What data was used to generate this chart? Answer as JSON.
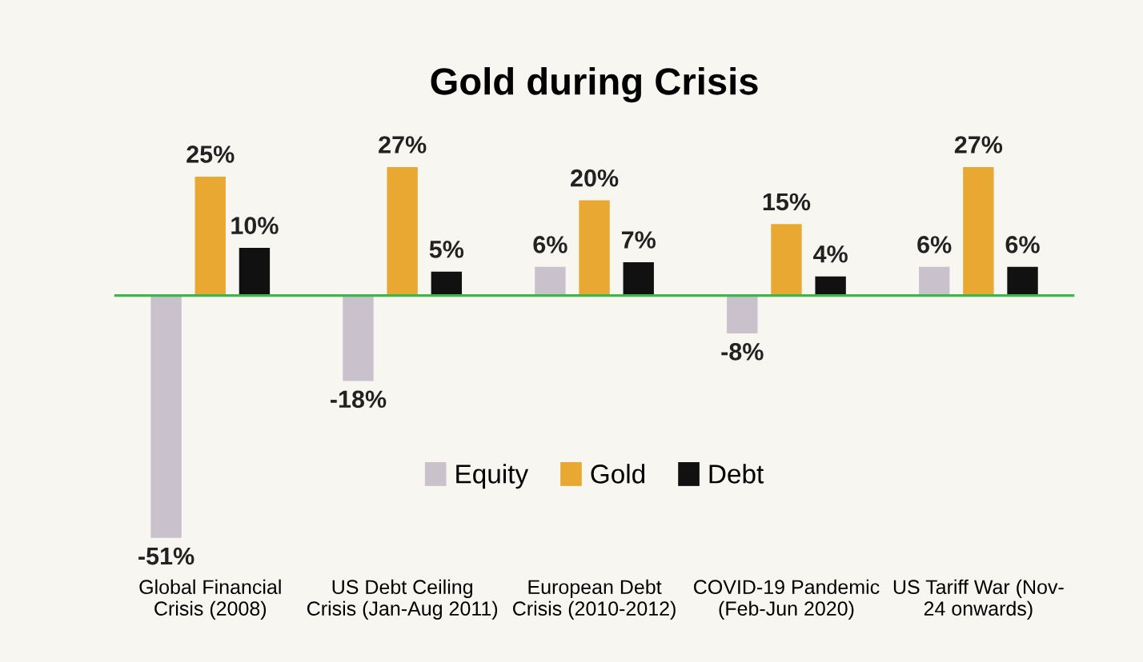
{
  "chart_data": {
    "type": "bar",
    "title": "Gold during Crisis",
    "categories": [
      "Global Financial\nCrisis (2008)",
      "US Debt Ceiling\nCrisis (Jan-Aug 2011)",
      "European Debt\nCrisis (2010-2012)",
      "COVID-19 Pandemic\n(Feb-Jun 2020)",
      "US Tariff War (Nov-\n24 onwards)"
    ],
    "series": [
      {
        "name": "Equity",
        "color": "#c9c1cc",
        "values": [
          -51,
          -18,
          6,
          -8,
          6
        ],
        "value_labels": [
          "-51%",
          "-18%",
          "6%",
          "-8%",
          "6%"
        ]
      },
      {
        "name": "Gold",
        "color": "#e8a832",
        "values": [
          25,
          27,
          20,
          15,
          27
        ],
        "value_labels": [
          "25%",
          "27%",
          "20%",
          "15%",
          "27%"
        ]
      },
      {
        "name": "Debt",
        "color": "#111111",
        "values": [
          10,
          5,
          7,
          4,
          6
        ],
        "value_labels": [
          "10%",
          "5%",
          "7%",
          "4%",
          "6%"
        ]
      }
    ],
    "ref_lines": [
      {
        "axis": "y",
        "value": 0,
        "color": "#3cb84a"
      }
    ],
    "legend": "bottom",
    "grid": false
  }
}
